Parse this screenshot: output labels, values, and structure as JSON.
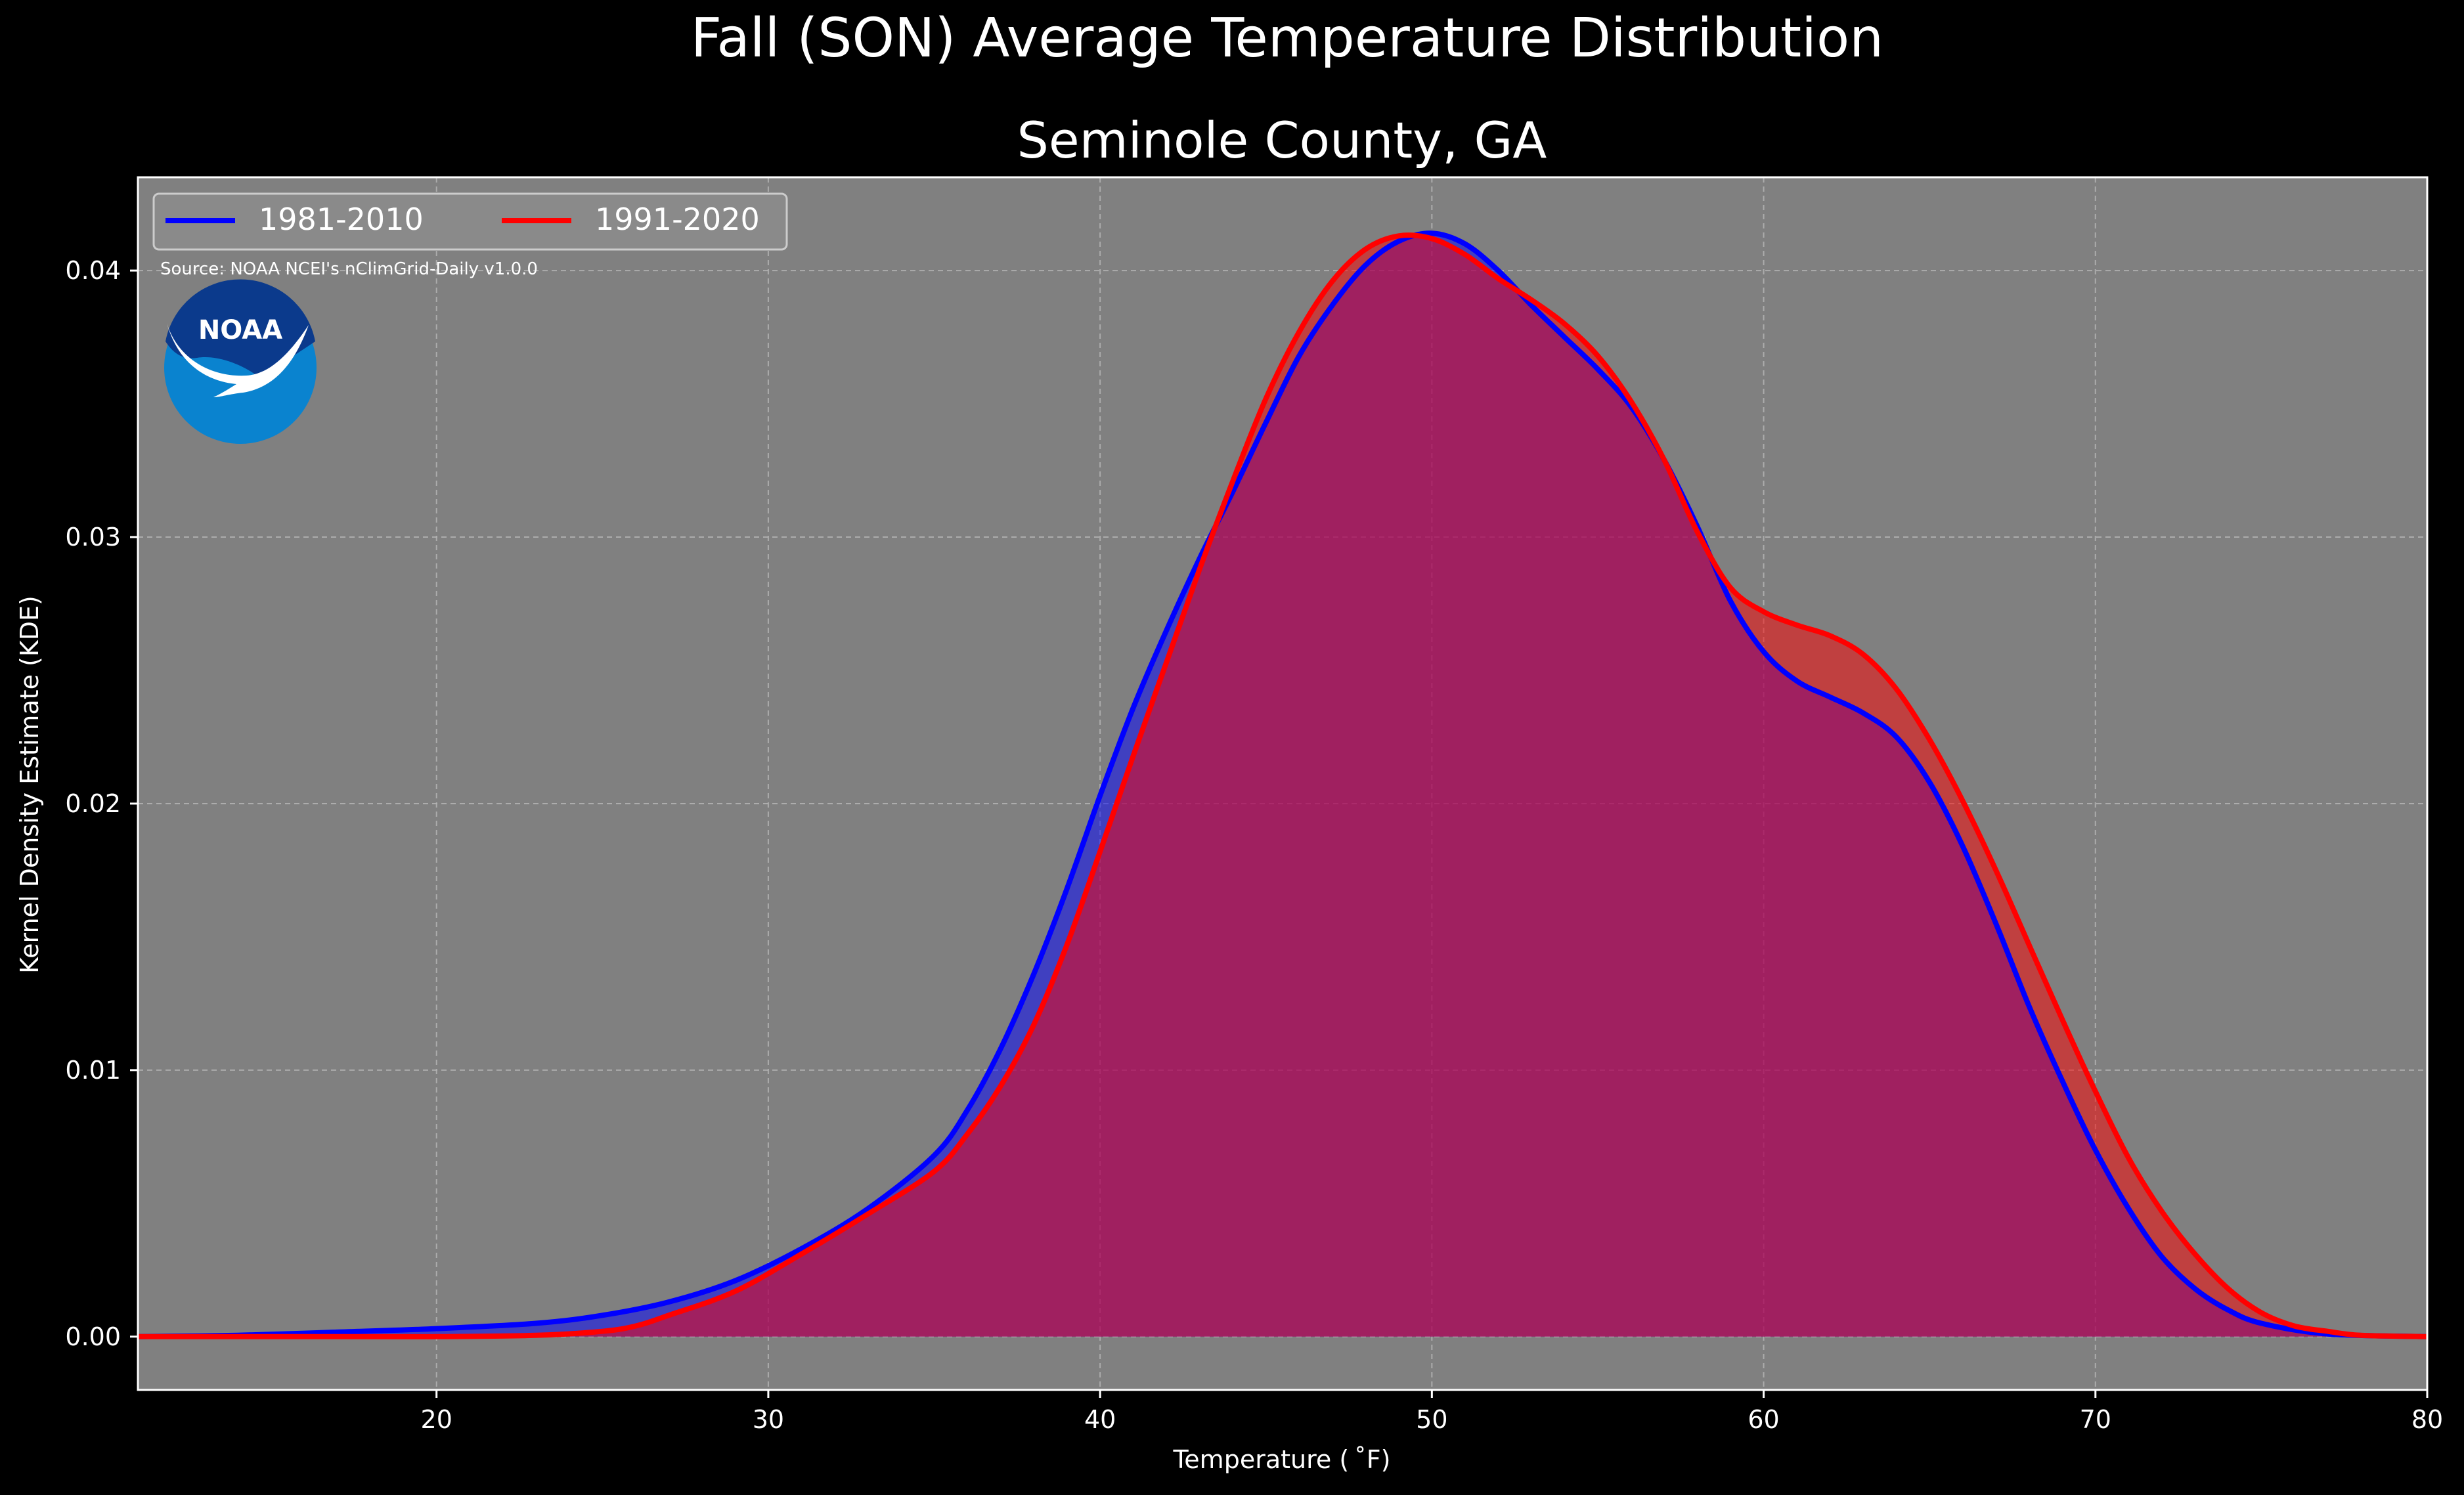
{
  "chart_data": {
    "type": "area",
    "title": "Fall (SON) Average Temperature Distribution",
    "subtitle": "Seminole County, GA",
    "xlabel": "Temperature ($^\\circ$F)",
    "xlabel_display": "Temperature ( ˚F)",
    "ylabel": "Kernel Density Estimate (KDE)",
    "xlim": [
      11,
      80
    ],
    "ylim": [
      -0.002,
      0.0435
    ],
    "xticks": [
      20,
      30,
      40,
      50,
      60,
      70,
      80
    ],
    "yticks": [
      0.0,
      0.01,
      0.02,
      0.03,
      0.04
    ],
    "ytick_labels": [
      "0.00",
      "0.01",
      "0.02",
      "0.03",
      "0.04"
    ],
    "grid": true,
    "legend_position": "top-left",
    "annotation": "Source: NOAA NCEI's nClimGrid-Daily v1.0.0",
    "logo_text": "NOAA",
    "colors": {
      "background": "#000000",
      "plot_background": "#808080",
      "text": "#ffffff"
    },
    "series": [
      {
        "name": "1981-2010",
        "color": "#0000ff",
        "fill_color": "#0000ff",
        "points": [
          [
            11,
            0.0
          ],
          [
            14,
            5e-05
          ],
          [
            17,
            0.00017
          ],
          [
            20,
            0.0003
          ],
          [
            23,
            0.0005
          ],
          [
            25,
            0.0008
          ],
          [
            27,
            0.0013
          ],
          [
            29,
            0.0021
          ],
          [
            31,
            0.0033
          ],
          [
            33,
            0.0048
          ],
          [
            35,
            0.0068
          ],
          [
            36,
            0.0085
          ],
          [
            37,
            0.0108
          ],
          [
            38,
            0.0136
          ],
          [
            39,
            0.0168
          ],
          [
            40,
            0.0203
          ],
          [
            41,
            0.0236
          ],
          [
            42,
            0.0265
          ],
          [
            43,
            0.0292
          ],
          [
            44,
            0.0317
          ],
          [
            45,
            0.0343
          ],
          [
            46,
            0.0368
          ],
          [
            47,
            0.0387
          ],
          [
            48,
            0.0402
          ],
          [
            49,
            0.0411
          ],
          [
            50,
            0.0414
          ],
          [
            51,
            0.041
          ],
          [
            52,
            0.04
          ],
          [
            53,
            0.0387
          ],
          [
            54,
            0.0375
          ],
          [
            55,
            0.0363
          ],
          [
            56,
            0.0349
          ],
          [
            57,
            0.0329
          ],
          [
            58,
            0.0304
          ],
          [
            59,
            0.0276
          ],
          [
            60,
            0.0257
          ],
          [
            61,
            0.0246
          ],
          [
            62,
            0.024
          ],
          [
            63,
            0.0234
          ],
          [
            64,
            0.0225
          ],
          [
            65,
            0.0208
          ],
          [
            66,
            0.0184
          ],
          [
            67,
            0.0155
          ],
          [
            68,
            0.0124
          ],
          [
            69,
            0.0096
          ],
          [
            70,
            0.007
          ],
          [
            71,
            0.0048
          ],
          [
            72,
            0.003
          ],
          [
            73,
            0.0018
          ],
          [
            74,
            0.001
          ],
          [
            75,
            0.0005
          ],
          [
            77,
            0.0001
          ],
          [
            80,
            0.0
          ]
        ]
      },
      {
        "name": "1991-2020",
        "color": "#ff0000",
        "fill_color": "#ff0000",
        "points": [
          [
            11,
            0.0
          ],
          [
            14,
            0.0
          ],
          [
            17,
            0.0
          ],
          [
            20,
            0.0
          ],
          [
            23,
            5e-05
          ],
          [
            25,
            0.0002
          ],
          [
            26,
            0.0004
          ],
          [
            27,
            0.0008
          ],
          [
            29,
            0.0017
          ],
          [
            31,
            0.0031
          ],
          [
            33,
            0.0046
          ],
          [
            35,
            0.0062
          ],
          [
            36,
            0.0076
          ],
          [
            37,
            0.0094
          ],
          [
            38,
            0.0117
          ],
          [
            39,
            0.0147
          ],
          [
            40,
            0.0182
          ],
          [
            41,
            0.0218
          ],
          [
            42,
            0.0253
          ],
          [
            43,
            0.0288
          ],
          [
            44,
            0.0321
          ],
          [
            45,
            0.0352
          ],
          [
            46,
            0.0377
          ],
          [
            47,
            0.0396
          ],
          [
            48,
            0.0408
          ],
          [
            49,
            0.0413
          ],
          [
            50,
            0.0412
          ],
          [
            51,
            0.0406
          ],
          [
            52,
            0.0397
          ],
          [
            53,
            0.0389
          ],
          [
            54,
            0.038
          ],
          [
            55,
            0.0368
          ],
          [
            56,
            0.0351
          ],
          [
            57,
            0.0329
          ],
          [
            58,
            0.0302
          ],
          [
            59,
            0.0281
          ],
          [
            60,
            0.0272
          ],
          [
            61,
            0.0267
          ],
          [
            62,
            0.0263
          ],
          [
            63,
            0.0256
          ],
          [
            64,
            0.0243
          ],
          [
            65,
            0.0224
          ],
          [
            66,
            0.0201
          ],
          [
            67,
            0.0175
          ],
          [
            68,
            0.0147
          ],
          [
            69,
            0.0119
          ],
          [
            70,
            0.0092
          ],
          [
            71,
            0.0067
          ],
          [
            72,
            0.0047
          ],
          [
            73,
            0.0031
          ],
          [
            74,
            0.0018
          ],
          [
            75,
            0.0009
          ],
          [
            76,
            0.0004
          ],
          [
            77,
            0.0002
          ],
          [
            78,
            5e-05
          ],
          [
            80,
            0.0
          ]
        ]
      }
    ]
  }
}
